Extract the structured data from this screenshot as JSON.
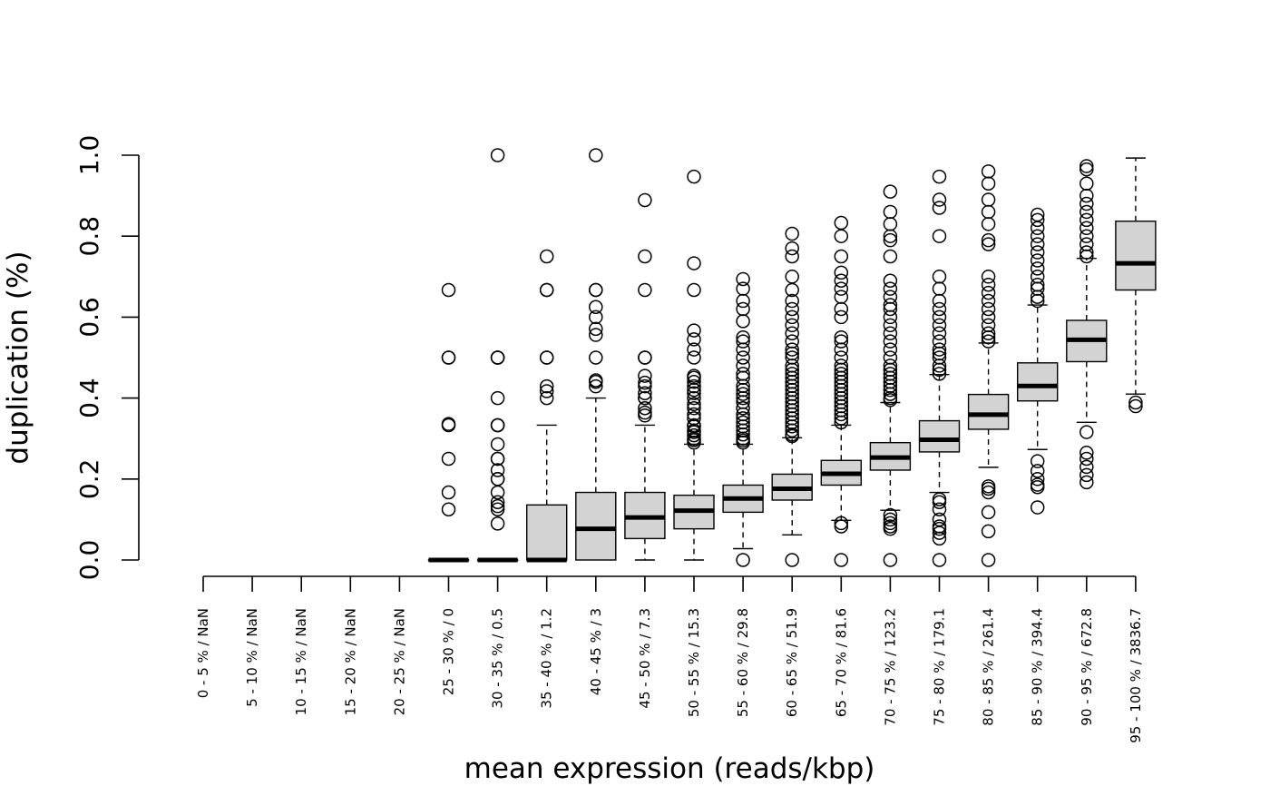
{
  "chart_data": {
    "type": "boxplot",
    "title": "",
    "xlabel": "mean expression (reads/kbp)",
    "ylabel": "duplication (%)",
    "ylim": [
      0,
      1
    ],
    "yticks": [
      0.0,
      0.2,
      0.4,
      0.6,
      0.8,
      1.0
    ],
    "ytick_labels": [
      "0.0",
      "0.2",
      "0.4",
      "0.6",
      "0.8",
      "1.0"
    ],
    "grid": false,
    "legend": "none",
    "box_fill": "#d3d3d3",
    "categories": [
      "0 - 5 % / NaN",
      "5 - 10 % / NaN",
      "10 - 15 % / NaN",
      "15 - 20 % / NaN",
      "20 - 25 % / NaN",
      "25 - 30 % / 0",
      "30 - 35 % / 0.5",
      "35 - 40 % / 1.2",
      "40 - 45 % / 3",
      "45 - 50 % / 7.3",
      "50 - 55 % / 15.3",
      "55 - 60 % / 29.8",
      "60 - 65 % / 51.9",
      "65 - 70 % / 81.6",
      "70 - 75 % / 123.2",
      "75 - 80 % / 179.1",
      "80 - 85 % / 261.4",
      "85 - 90 % / 394.4",
      "90 - 95 % / 672.8",
      "95 - 100 % / 3836.7"
    ],
    "boxes": [
      null,
      null,
      null,
      null,
      null,
      {
        "whislo": 0,
        "q1": 0,
        "med": 0,
        "q3": 0,
        "whishi": 0,
        "outliers": [
          0.125,
          0.167,
          0.25,
          0.333,
          0.336,
          0.5,
          0.5,
          0.667
        ]
      },
      {
        "whislo": 0,
        "q1": 0,
        "med": 0,
        "q3": 0,
        "whishi": 0,
        "outliers": [
          0.09,
          0.125,
          0.133,
          0.143,
          0.167,
          0.2,
          0.2,
          0.222,
          0.25,
          0.25,
          0.286,
          0.333,
          0.333,
          0.333,
          0.4,
          0.5,
          0.5,
          0.5,
          1.0
        ]
      },
      {
        "whislo": 0,
        "q1": 0,
        "med": 0,
        "q3": 0.136,
        "whishi": 0.333,
        "outliers": [
          0.4,
          0.417,
          0.429,
          0.5,
          0.5,
          0.667,
          0.667,
          0.75
        ]
      },
      {
        "whislo": 0,
        "q1": 0,
        "med": 0.077,
        "q3": 0.167,
        "whishi": 0.4,
        "outliers": [
          0.429,
          0.44,
          0.444,
          0.5,
          0.556,
          0.571,
          0.6,
          0.625,
          0.667,
          0.667,
          1.0
        ]
      },
      {
        "whislo": 0,
        "q1": 0.053,
        "med": 0.105,
        "q3": 0.167,
        "whishi": 0.333,
        "outliers": [
          0.357,
          0.364,
          0.375,
          0.4,
          0.4,
          0.412,
          0.429,
          0.438,
          0.455,
          0.5,
          0.5,
          0.667,
          0.75,
          0.889
        ]
      },
      {
        "whislo": 0,
        "q1": 0.077,
        "med": 0.122,
        "q3": 0.16,
        "whishi": 0.286,
        "outliers": [
          0.29,
          0.296,
          0.3,
          0.308,
          0.316,
          0.32,
          0.33,
          0.333,
          0.35,
          0.36,
          0.375,
          0.385,
          0.4,
          0.412,
          0.42,
          0.429,
          0.44,
          0.45,
          0.455,
          0.5,
          0.52,
          0.545,
          0.567,
          0.667,
          0.733,
          0.947
        ]
      },
      {
        "whislo": 0.028,
        "q1": 0.118,
        "med": 0.152,
        "q3": 0.185,
        "whishi": 0.286,
        "outliers": [
          0,
          0.29,
          0.295,
          0.3,
          0.31,
          0.32,
          0.33,
          0.34,
          0.35,
          0.36,
          0.375,
          0.39,
          0.4,
          0.41,
          0.42,
          0.43,
          0.45,
          0.46,
          0.48,
          0.5,
          0.52,
          0.54,
          0.55,
          0.59,
          0.62,
          0.64,
          0.67,
          0.694
        ]
      },
      {
        "whislo": 0.062,
        "q1": 0.148,
        "med": 0.176,
        "q3": 0.212,
        "whishi": 0.302,
        "outliers": [
          0,
          0.306,
          0.31,
          0.32,
          0.33,
          0.34,
          0.35,
          0.36,
          0.37,
          0.38,
          0.39,
          0.4,
          0.41,
          0.42,
          0.43,
          0.44,
          0.45,
          0.46,
          0.47,
          0.48,
          0.5,
          0.51,
          0.52,
          0.54,
          0.56,
          0.58,
          0.6,
          0.62,
          0.64,
          0.667,
          0.7,
          0.75,
          0.77,
          0.806
        ]
      },
      {
        "whislo": 0.098,
        "q1": 0.185,
        "med": 0.213,
        "q3": 0.246,
        "whishi": 0.333,
        "outliers": [
          0,
          0.083,
          0.091,
          0.34,
          0.35,
          0.36,
          0.37,
          0.38,
          0.39,
          0.4,
          0.41,
          0.42,
          0.43,
          0.44,
          0.45,
          0.46,
          0.47,
          0.48,
          0.5,
          0.52,
          0.54,
          0.55,
          0.6,
          0.62,
          0.65,
          0.67,
          0.69,
          0.71,
          0.75,
          0.8,
          0.833
        ]
      },
      {
        "whislo": 0.123,
        "q1": 0.222,
        "med": 0.253,
        "q3": 0.29,
        "whishi": 0.389,
        "outliers": [
          0,
          0.077,
          0.083,
          0.091,
          0.1,
          0.111,
          0.395,
          0.4,
          0.41,
          0.42,
          0.43,
          0.44,
          0.45,
          0.46,
          0.47,
          0.48,
          0.5,
          0.52,
          0.54,
          0.56,
          0.58,
          0.6,
          0.62,
          0.63,
          0.65,
          0.67,
          0.69,
          0.75,
          0.79,
          0.8,
          0.83,
          0.86,
          0.91
        ]
      },
      {
        "whislo": 0.167,
        "q1": 0.267,
        "med": 0.297,
        "q3": 0.344,
        "whishi": 0.458,
        "outliers": [
          0,
          0.053,
          0.067,
          0.077,
          0.083,
          0.1,
          0.125,
          0.143,
          0.15,
          0.46,
          0.47,
          0.48,
          0.5,
          0.51,
          0.52,
          0.54,
          0.56,
          0.58,
          0.6,
          0.62,
          0.64,
          0.67,
          0.7,
          0.8,
          0.87,
          0.89,
          0.947
        ]
      },
      {
        "whislo": 0.229,
        "q1": 0.323,
        "med": 0.359,
        "q3": 0.409,
        "whishi": 0.536,
        "outliers": [
          0,
          0.071,
          0.118,
          0.167,
          0.176,
          0.182,
          0.54,
          0.55,
          0.56,
          0.58,
          0.6,
          0.62,
          0.64,
          0.66,
          0.68,
          0.7,
          0.78,
          0.79,
          0.83,
          0.86,
          0.89,
          0.93,
          0.96
        ]
      },
      {
        "whislo": 0.273,
        "q1": 0.393,
        "med": 0.43,
        "q3": 0.487,
        "whishi": 0.63,
        "outliers": [
          0.13,
          0.18,
          0.186,
          0.2,
          0.22,
          0.244,
          0.64,
          0.65,
          0.67,
          0.68,
          0.7,
          0.72,
          0.74,
          0.76,
          0.78,
          0.8,
          0.82,
          0.84,
          0.853
        ]
      },
      {
        "whislo": 0.34,
        "q1": 0.49,
        "med": 0.544,
        "q3": 0.592,
        "whishi": 0.745,
        "outliers": [
          0.192,
          0.21,
          0.23,
          0.25,
          0.265,
          0.316,
          0.75,
          0.76,
          0.78,
          0.8,
          0.82,
          0.84,
          0.86,
          0.88,
          0.9,
          0.93,
          0.965,
          0.973
        ]
      },
      {
        "whislo": 0.41,
        "q1": 0.667,
        "med": 0.733,
        "q3": 0.837,
        "whishi": 0.993,
        "outliers": [
          0.38,
          0.389
        ]
      }
    ]
  }
}
